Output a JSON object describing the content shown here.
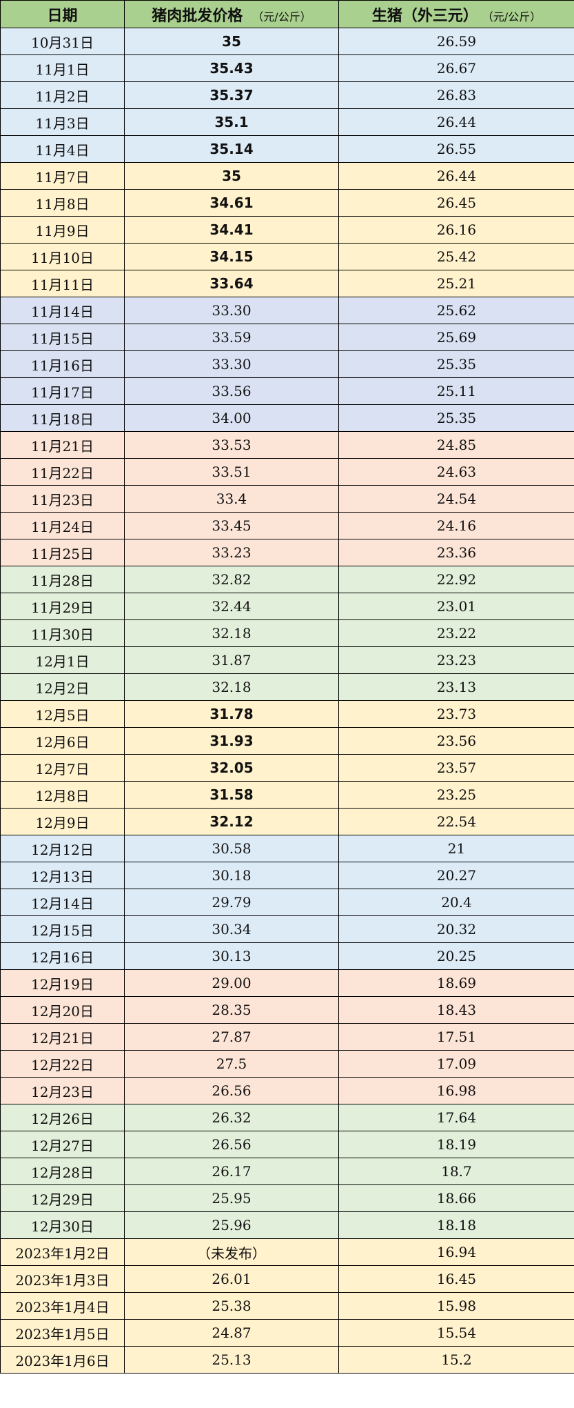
{
  "header": {
    "date": "日期",
    "pork": "猪肉批发价格",
    "pork_unit": "（元/公斤）",
    "hog": "生猪（外三元）",
    "hog_unit": "（元/公斤）"
  },
  "colors": {
    "header": "#a9d08e",
    "blue": "#ddebf7",
    "yellow": "#fff2cc",
    "lavender": "#d9e1f2",
    "pink": "#fce4d6",
    "green": "#e2efda"
  },
  "rows": [
    {
      "date": "10月31日",
      "pork": "35",
      "hog": "26.59",
      "color": "blue",
      "bold": true
    },
    {
      "date": "11月1日",
      "pork": "35.43",
      "hog": "26.67",
      "color": "blue",
      "bold": true
    },
    {
      "date": "11月2日",
      "pork": "35.37",
      "hog": "26.83",
      "color": "blue",
      "bold": true
    },
    {
      "date": "11月3日",
      "pork": "35.1",
      "hog": "26.44",
      "color": "blue",
      "bold": true
    },
    {
      "date": "11月4日",
      "pork": "35.14",
      "hog": "26.55",
      "color": "blue",
      "bold": true
    },
    {
      "date": "11月7日",
      "pork": "35",
      "hog": "26.44",
      "color": "yellow",
      "bold": true
    },
    {
      "date": "11月8日",
      "pork": "34.61",
      "hog": "26.45",
      "color": "yellow",
      "bold": true
    },
    {
      "date": "11月9日",
      "pork": "34.41",
      "hog": "26.16",
      "color": "yellow",
      "bold": true
    },
    {
      "date": "11月10日",
      "pork": "34.15",
      "hog": "25.42",
      "color": "yellow",
      "bold": true
    },
    {
      "date": "11月11日",
      "pork": "33.64",
      "hog": "25.21",
      "color": "yellow",
      "bold": true
    },
    {
      "date": "11月14日",
      "pork": "33.30",
      "hog": "25.62",
      "color": "lavender",
      "bold": false
    },
    {
      "date": "11月15日",
      "pork": "33.59",
      "hog": "25.69",
      "color": "lavender",
      "bold": false
    },
    {
      "date": "11月16日",
      "pork": "33.30",
      "hog": "25.35",
      "color": "lavender",
      "bold": false
    },
    {
      "date": "11月17日",
      "pork": "33.56",
      "hog": "25.11",
      "color": "lavender",
      "bold": false
    },
    {
      "date": "11月18日",
      "pork": "34.00",
      "hog": "25.35",
      "color": "lavender",
      "bold": false
    },
    {
      "date": "11月21日",
      "pork": "33.53",
      "hog": "24.85",
      "color": "pink",
      "bold": false
    },
    {
      "date": "11月22日",
      "pork": "33.51",
      "hog": "24.63",
      "color": "pink",
      "bold": false
    },
    {
      "date": "11月23日",
      "pork": "33.4",
      "hog": "24.54",
      "color": "pink",
      "bold": false
    },
    {
      "date": "11月24日",
      "pork": "33.45",
      "hog": "24.16",
      "color": "pink",
      "bold": false
    },
    {
      "date": "11月25日",
      "pork": "33.23",
      "hog": "23.36",
      "color": "pink",
      "bold": false
    },
    {
      "date": "11月28日",
      "pork": "32.82",
      "hog": "22.92",
      "color": "green",
      "bold": false
    },
    {
      "date": "11月29日",
      "pork": "32.44",
      "hog": "23.01",
      "color": "green",
      "bold": false
    },
    {
      "date": "11月30日",
      "pork": "32.18",
      "hog": "23.22",
      "color": "green",
      "bold": false
    },
    {
      "date": "12月1日",
      "pork": "31.87",
      "hog": "23.23",
      "color": "green",
      "bold": false
    },
    {
      "date": "12月2日",
      "pork": "32.18",
      "hog": "23.13",
      "color": "green",
      "bold": false
    },
    {
      "date": "12月5日",
      "pork": "31.78",
      "hog": "23.73",
      "color": "yellow",
      "bold": true
    },
    {
      "date": "12月6日",
      "pork": "31.93",
      "hog": "23.56",
      "color": "yellow",
      "bold": true
    },
    {
      "date": "12月7日",
      "pork": "32.05",
      "hog": "23.57",
      "color": "yellow",
      "bold": true
    },
    {
      "date": "12月8日",
      "pork": "31.58",
      "hog": "23.25",
      "color": "yellow",
      "bold": true
    },
    {
      "date": "12月9日",
      "pork": "32.12",
      "hog": "22.54",
      "color": "yellow",
      "bold": true
    },
    {
      "date": "12月12日",
      "pork": "30.58",
      "hog": "21",
      "color": "blue",
      "bold": false
    },
    {
      "date": "12月13日",
      "pork": "30.18",
      "hog": "20.27",
      "color": "blue",
      "bold": false
    },
    {
      "date": "12月14日",
      "pork": "29.79",
      "hog": "20.4",
      "color": "blue",
      "bold": false
    },
    {
      "date": "12月15日",
      "pork": "30.34",
      "hog": "20.32",
      "color": "blue",
      "bold": false
    },
    {
      "date": "12月16日",
      "pork": "30.13",
      "hog": "20.25",
      "color": "blue",
      "bold": false
    },
    {
      "date": "12月19日",
      "pork": "29.00",
      "hog": "18.69",
      "color": "pink",
      "bold": false
    },
    {
      "date": "12月20日",
      "pork": "28.35",
      "hog": "18.43",
      "color": "pink",
      "bold": false
    },
    {
      "date": "12月21日",
      "pork": "27.87",
      "hog": "17.51",
      "color": "pink",
      "bold": false
    },
    {
      "date": "12月22日",
      "pork": "27.5",
      "hog": "17.09",
      "color": "pink",
      "bold": false
    },
    {
      "date": "12月23日",
      "pork": "26.56",
      "hog": "16.98",
      "color": "pink",
      "bold": false
    },
    {
      "date": "12月26日",
      "pork": "26.32",
      "hog": "17.64",
      "color": "green",
      "bold": false
    },
    {
      "date": "12月27日",
      "pork": "26.56",
      "hog": "18.19",
      "color": "green",
      "bold": false
    },
    {
      "date": "12月28日",
      "pork": "26.17",
      "hog": "18.7",
      "color": "green",
      "bold": false
    },
    {
      "date": "12月29日",
      "pork": "25.95",
      "hog": "18.66",
      "color": "green",
      "bold": false
    },
    {
      "date": "12月30日",
      "pork": "25.96",
      "hog": "18.18",
      "color": "green",
      "bold": false
    },
    {
      "date": "2023年1月2日",
      "pork": "（未发布）",
      "hog": "16.94",
      "color": "yellow",
      "bold": false
    },
    {
      "date": "2023年1月3日",
      "pork": "26.01",
      "hog": "16.45",
      "color": "yellow",
      "bold": false
    },
    {
      "date": "2023年1月4日",
      "pork": "25.38",
      "hog": "15.98",
      "color": "yellow",
      "bold": false
    },
    {
      "date": "2023年1月5日",
      "pork": "24.87",
      "hog": "15.54",
      "color": "yellow",
      "bold": false
    },
    {
      "date": "2023年1月6日",
      "pork": "25.13",
      "hog": "15.2",
      "color": "yellow",
      "bold": false
    }
  ]
}
